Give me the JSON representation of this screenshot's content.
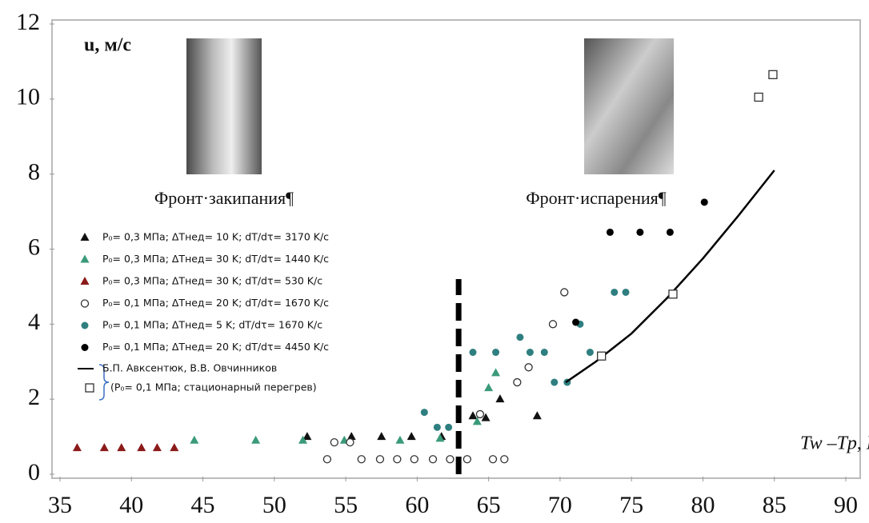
{
  "chart_data": {
    "type": "scatter",
    "y_label": "u, м/с",
    "x_label": "Tw –Tp, K",
    "annotations": [
      "Фронт·закипания¶",
      "Фронт·испарения¶"
    ],
    "xlim": [
      35,
      90
    ],
    "xticks": [
      35,
      40,
      45,
      50,
      55,
      60,
      65,
      70,
      75,
      80,
      85,
      90
    ],
    "ylim": [
      0,
      12
    ],
    "yticks": [
      0,
      2,
      4,
      6,
      8,
      10,
      12
    ],
    "grid": false,
    "threshold": {
      "x": 62.9,
      "y": [
        0,
        5.2
      ]
    },
    "series": [
      {
        "name": "P₀= 0,3 МПа; ΔTнед= 10 K; dT/dτ= 3170  K/с",
        "color": "#111111",
        "marker": "triangle",
        "x": [
          52.3,
          55.4,
          57.5,
          59.6,
          61.7,
          63.9,
          64.8,
          65.8,
          68.4
        ],
        "values": [
          1.0,
          1.0,
          1.0,
          1.0,
          1.0,
          1.55,
          1.5,
          2.0,
          1.55
        ]
      },
      {
        "name": "P₀= 0,3 МПа; ΔTнед= 30 K; dT/dτ= 1440  K/с",
        "color": "#3a9a7a",
        "marker": "triangle",
        "x": [
          44.4,
          48.7,
          52.0,
          54.9,
          58.8,
          61.6,
          64.2,
          65.0,
          65.5
        ],
        "values": [
          0.9,
          0.9,
          0.9,
          0.9,
          0.9,
          0.95,
          1.4,
          2.3,
          2.7
        ]
      },
      {
        "name": "P₀= 0,3 МПа; ΔTнед= 30 K; dT/dτ= 530  K/с",
        "color": "#8b1a1a",
        "marker": "triangle",
        "x": [
          36.2,
          38.1,
          39.3,
          40.7,
          41.8,
          43.0
        ],
        "values": [
          0.7,
          0.7,
          0.7,
          0.7,
          0.7,
          0.7
        ]
      },
      {
        "name": "P₀= 0,1 МПа; ΔTнед= 20 K; dT/dτ= 1670  K/с",
        "color": "#333333",
        "marker": "open-circle",
        "x": [
          53.7,
          54.2,
          55.3,
          56.1,
          57.4,
          58.6,
          59.8,
          61.1,
          62.3,
          63.5,
          64.4,
          65.3,
          66.1,
          67.0,
          67.8,
          69.5,
          70.3
        ],
        "values": [
          0.4,
          0.85,
          0.85,
          0.4,
          0.4,
          0.4,
          0.4,
          0.4,
          0.4,
          0.4,
          1.6,
          0.4,
          0.4,
          2.45,
          2.85,
          4.0,
          4.85
        ]
      },
      {
        "name": "P₀= 0,1 МПа; ΔTнед= 5 K;    dT/dτ= 1670  K/с",
        "color": "#2f7f80",
        "marker": "circle",
        "x": [
          60.5,
          61.4,
          62.2,
          63.9,
          65.5,
          67.2,
          67.9,
          68.9,
          69.6,
          70.5,
          71.4,
          72.1,
          73.8,
          74.6
        ],
        "values": [
          1.65,
          1.25,
          1.25,
          3.25,
          3.25,
          3.65,
          3.25,
          3.25,
          2.45,
          2.45,
          4.0,
          3.25,
          4.85,
          4.85
        ]
      },
      {
        "name": "P₀= 0,1 МПа; ΔTнед= 20 K; dT/dτ= 4450  K/с",
        "color": "#000000",
        "marker": "circle",
        "x": [
          71.1,
          73.5,
          75.6,
          77.7,
          80.1
        ],
        "values": [
          4.05,
          6.45,
          6.45,
          6.45,
          7.25
        ]
      },
      {
        "name": "Б.П. Авксентюк, В.В. Овчинников",
        "color": "#000000",
        "marker": "line",
        "x": [
          70.4,
          72.5,
          75,
          77.5,
          80,
          82.5,
          85
        ],
        "values": [
          2.45,
          3.0,
          3.75,
          4.7,
          5.75,
          6.9,
          8.1
        ]
      },
      {
        "name": "(P₀= 0,1 МПа; стационарный  перегрев)",
        "color": "#333333",
        "marker": "open-square",
        "x": [
          72.9,
          77.9,
          83.9,
          84.9
        ],
        "values": [
          3.15,
          4.8,
          10.05,
          10.65
        ]
      }
    ]
  }
}
